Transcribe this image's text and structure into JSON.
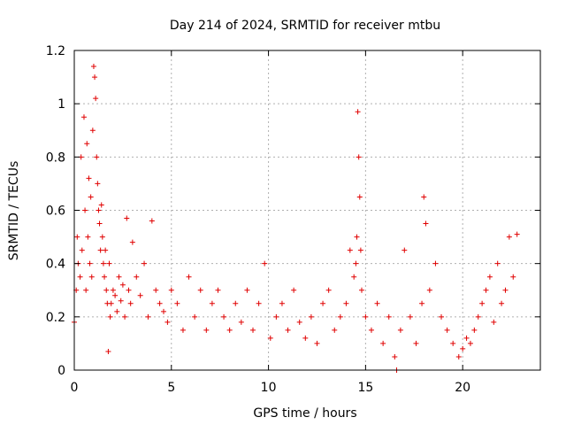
{
  "chart_data": {
    "type": "scatter",
    "title": "Day 214 of 2024, SRMTID for receiver mtbu",
    "xlabel": "GPS time / hours",
    "ylabel": "SRMTID / TECUs",
    "xlim": [
      0,
      24
    ],
    "ylim": [
      0,
      1.2
    ],
    "xticks": [
      "0",
      "5",
      "10",
      "15",
      "20"
    ],
    "yticks": [
      "0",
      "0.2",
      "0.4",
      "0.6",
      "0.8",
      "1",
      "1.2"
    ],
    "grid": true,
    "legend": "none",
    "marker": "plus",
    "color": "#e00000",
    "series": [
      {
        "name": "SRMTID",
        "x": [
          0.0,
          0.1,
          0.15,
          0.2,
          0.3,
          0.35,
          0.4,
          0.5,
          0.55,
          0.6,
          0.65,
          0.7,
          0.75,
          0.8,
          0.85,
          0.9,
          0.95,
          1.0,
          1.05,
          1.1,
          1.15,
          1.2,
          1.25,
          1.3,
          1.35,
          1.4,
          1.45,
          1.5,
          1.55,
          1.6,
          1.65,
          1.7,
          1.75,
          1.8,
          1.85,
          1.9,
          2.0,
          2.1,
          2.2,
          2.3,
          2.4,
          2.5,
          2.6,
          2.7,
          2.8,
          2.9,
          3.0,
          3.2,
          3.4,
          3.6,
          3.8,
          4.0,
          4.2,
          4.4,
          4.6,
          4.8,
          5.0,
          5.3,
          5.6,
          5.9,
          6.2,
          6.5,
          6.8,
          7.1,
          7.4,
          7.7,
          8.0,
          8.3,
          8.6,
          8.9,
          9.2,
          9.5,
          9.8,
          10.1,
          10.4,
          10.7,
          11.0,
          11.3,
          11.6,
          11.9,
          12.2,
          12.5,
          12.8,
          13.1,
          13.4,
          13.7,
          14.0,
          14.2,
          14.4,
          14.5,
          14.55,
          14.6,
          14.65,
          14.7,
          14.75,
          14.8,
          15.0,
          15.3,
          15.6,
          15.9,
          16.2,
          16.5,
          16.6,
          16.8,
          17.0,
          17.3,
          17.6,
          17.9,
          18.0,
          18.1,
          18.3,
          18.6,
          18.9,
          19.2,
          19.5,
          19.8,
          20.0,
          20.2,
          20.4,
          20.6,
          20.8,
          21.0,
          21.2,
          21.4,
          21.6,
          21.8,
          22.0,
          22.2,
          22.4,
          22.6,
          22.8
        ],
        "y": [
          0.18,
          0.3,
          0.5,
          0.4,
          0.35,
          0.8,
          0.45,
          0.95,
          0.6,
          0.3,
          0.85,
          0.5,
          0.72,
          0.4,
          0.65,
          0.35,
          0.9,
          1.14,
          1.1,
          1.02,
          0.8,
          0.7,
          0.6,
          0.55,
          0.45,
          0.62,
          0.5,
          0.4,
          0.35,
          0.45,
          0.3,
          0.25,
          0.07,
          0.4,
          0.2,
          0.25,
          0.3,
          0.28,
          0.22,
          0.35,
          0.26,
          0.32,
          0.2,
          0.57,
          0.3,
          0.25,
          0.48,
          0.35,
          0.28,
          0.4,
          0.2,
          0.56,
          0.3,
          0.25,
          0.22,
          0.18,
          0.3,
          0.25,
          0.15,
          0.35,
          0.2,
          0.3,
          0.15,
          0.25,
          0.3,
          0.2,
          0.15,
          0.25,
          0.18,
          0.3,
          0.15,
          0.25,
          0.4,
          0.12,
          0.2,
          0.25,
          0.15,
          0.3,
          0.18,
          0.12,
          0.2,
          0.1,
          0.25,
          0.3,
          0.15,
          0.2,
          0.25,
          0.45,
          0.35,
          0.4,
          0.5,
          0.97,
          0.8,
          0.65,
          0.45,
          0.3,
          0.2,
          0.15,
          0.25,
          0.1,
          0.2,
          0.05,
          0.0,
          0.15,
          0.45,
          0.2,
          0.1,
          0.25,
          0.65,
          0.55,
          0.3,
          0.4,
          0.2,
          0.15,
          0.1,
          0.05,
          0.08,
          0.12,
          0.1,
          0.15,
          0.2,
          0.25,
          0.3,
          0.35,
          0.18,
          0.4,
          0.25,
          0.3,
          0.5,
          0.35,
          0.51
        ]
      }
    ]
  }
}
